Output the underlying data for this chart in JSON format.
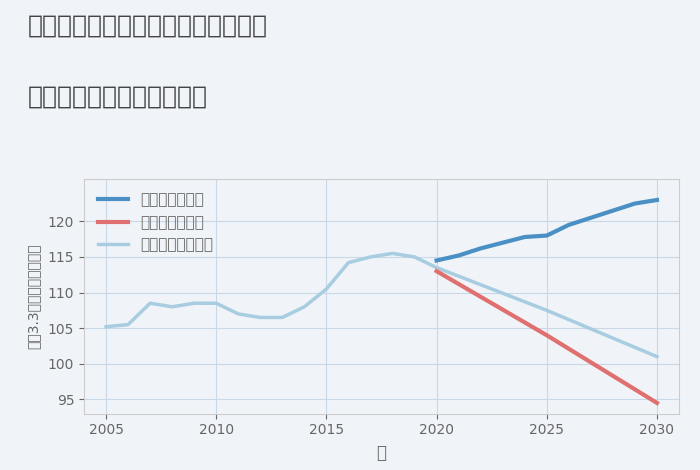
{
  "title_line1": "岐阜県揖斐郡揖斐川町谷汲木曽屋の",
  "title_line2": "中古マンションの価格推移",
  "xlabel": "年",
  "ylabel": "平（3.3㎡）単価（万円）",
  "background_color": "#f0f4f8",
  "plot_background": "#f0f4f8",
  "ylim": [
    93,
    126
  ],
  "yticks": [
    95,
    100,
    105,
    110,
    115,
    120
  ],
  "xlim": [
    2004,
    2031
  ],
  "xticks": [
    2005,
    2010,
    2015,
    2020,
    2025,
    2030
  ],
  "grid_color": "#c8d8e8",
  "normal_scenario": {
    "label": "ノーマルシナリオ",
    "color": "#a8cce0",
    "linewidth": 2.5,
    "x": [
      2005,
      2006,
      2007,
      2008,
      2009,
      2010,
      2011,
      2012,
      2013,
      2014,
      2015,
      2016,
      2017,
      2018,
      2019,
      2020,
      2025,
      2030
    ],
    "y": [
      105.2,
      105.5,
      108.5,
      108.0,
      108.5,
      108.5,
      107.0,
      106.5,
      106.5,
      108.0,
      110.5,
      114.2,
      115.0,
      115.5,
      115.0,
      113.5,
      107.5,
      101.0
    ]
  },
  "good_scenario": {
    "label": "グッドシナリオ",
    "color": "#4a90c4",
    "linewidth": 3.0,
    "x": [
      2020,
      2021,
      2022,
      2023,
      2024,
      2025,
      2026,
      2027,
      2028,
      2029,
      2030
    ],
    "y": [
      114.5,
      115.2,
      116.2,
      117.0,
      117.8,
      118.0,
      119.5,
      120.5,
      121.5,
      122.5,
      123.0
    ]
  },
  "bad_scenario": {
    "label": "バッドシナリオ",
    "color": "#e07070",
    "linewidth": 3.0,
    "x": [
      2020,
      2025,
      2030
    ],
    "y": [
      113.0,
      104.0,
      94.5
    ]
  },
  "legend_fontsize": 11,
  "title_fontsize": 18,
  "tick_color": "#666666",
  "axis_color": "#cccccc"
}
